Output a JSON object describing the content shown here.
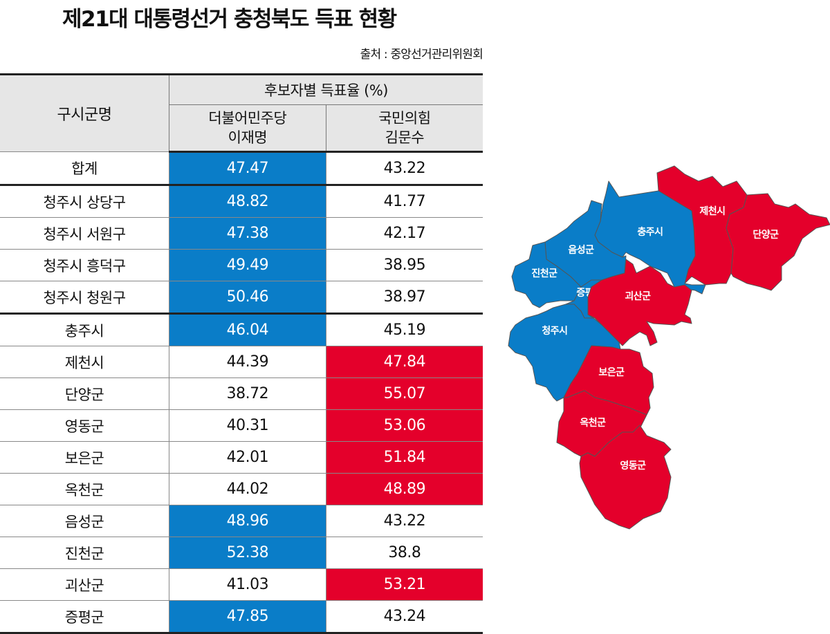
{
  "title": "제21대 대통령선거 충청북도 득표 현황",
  "source": "출처 : 중앙선거관리위원회",
  "colors": {
    "democratic": "#0a7dc8",
    "ppp": "#e4002b"
  },
  "chart_data": {
    "type": "table",
    "title": "제21대 대통령선거 충청북도 득표 현황",
    "header": {
      "region": "구시군명",
      "group": "후보자별 득표율 (%)",
      "candidates": [
        {
          "party": "더불어민주당",
          "name": "이재명"
        },
        {
          "party": "국민의힘",
          "name": "김문수"
        }
      ]
    },
    "rows": [
      {
        "region": "합계",
        "lee": "47.47",
        "kim": "43.22"
      },
      {
        "region": "청주시 상당구",
        "lee": "48.82",
        "kim": "41.77"
      },
      {
        "region": "청주시 서원구",
        "lee": "47.38",
        "kim": "42.17"
      },
      {
        "region": "청주시 흥덕구",
        "lee": "49.49",
        "kim": "38.95"
      },
      {
        "region": "청주시 청원구",
        "lee": "50.46",
        "kim": "38.97"
      },
      {
        "region": "충주시",
        "lee": "46.04",
        "kim": "45.19"
      },
      {
        "region": "제천시",
        "lee": "44.39",
        "kim": "47.84"
      },
      {
        "region": "단양군",
        "lee": "38.72",
        "kim": "55.07"
      },
      {
        "region": "영동군",
        "lee": "40.31",
        "kim": "53.06"
      },
      {
        "region": "보은군",
        "lee": "42.01",
        "kim": "51.84"
      },
      {
        "region": "옥천군",
        "lee": "44.02",
        "kim": "48.89"
      },
      {
        "region": "음성군",
        "lee": "48.96",
        "kim": "43.22"
      },
      {
        "region": "진천군",
        "lee": "52.38",
        "kim": "38.8"
      },
      {
        "region": "괴산군",
        "lee": "41.03",
        "kim": "53.21"
      },
      {
        "region": "증평군",
        "lee": "47.85",
        "kim": "43.24"
      }
    ]
  },
  "map": {
    "regions": [
      {
        "name": "제천시",
        "winner": "ppp"
      },
      {
        "name": "단양군",
        "winner": "ppp"
      },
      {
        "name": "충주시",
        "winner": "democratic"
      },
      {
        "name": "음성군",
        "winner": "democratic"
      },
      {
        "name": "진천군",
        "winner": "democratic"
      },
      {
        "name": "증평군",
        "winner": "democratic"
      },
      {
        "name": "괴산군",
        "winner": "ppp"
      },
      {
        "name": "청주시",
        "winner": "democratic"
      },
      {
        "name": "보은군",
        "winner": "ppp"
      },
      {
        "name": "옥천군",
        "winner": "ppp"
      },
      {
        "name": "영동군",
        "winner": "ppp"
      }
    ]
  }
}
